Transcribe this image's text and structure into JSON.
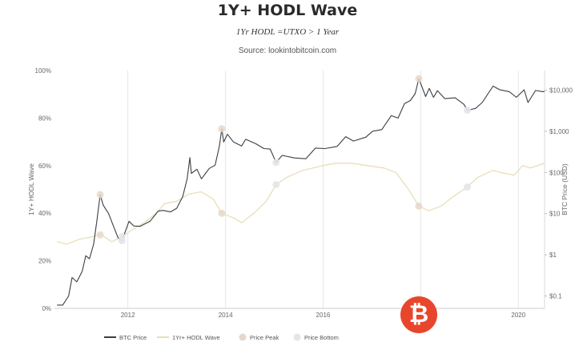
{
  "page": {
    "title": "1Y+ HODL Wave",
    "subtitle": "1Yr HODL =UTXO > 1 Year",
    "source": "Source: lookintobitcoin.com"
  },
  "colors": {
    "price_line": "#3a3f44",
    "hodl_line": "#e8dfb8",
    "peak_marker": "#e7d7c9",
    "bottom_marker": "#e3e6ea",
    "grid": "#e6e6e6",
    "watermark": "#e8462c"
  },
  "icons": {
    "watermark": "bitcoin-logo-icon"
  },
  "chart_data": {
    "type": "line",
    "title": "1Y+ HODL Wave",
    "xlabel": "",
    "ylabel_left": "1Y+ HODL Wave",
    "ylabel_right": "BTC Price (USD)",
    "x_type": "date",
    "xlim": [
      "2010-07-01",
      "2020-07-15"
    ],
    "x_ticks": [
      {
        "date": "2012-01-01",
        "label": "2012"
      },
      {
        "date": "2014-01-01",
        "label": "2014"
      },
      {
        "date": "2016-01-01",
        "label": "2016"
      },
      {
        "date": "2020-01-01",
        "label": "2020"
      }
    ],
    "x_gridlines": [
      "2012-01-01",
      "2014-01-01",
      "2016-01-01",
      "2018-01-01",
      "2020-01-01"
    ],
    "y_left": {
      "min": 0,
      "max": 100,
      "ticks": [
        0,
        20,
        40,
        60,
        80,
        100
      ],
      "tick_labels": [
        "0%",
        "20%",
        "40%",
        "60%",
        "80%",
        "100%"
      ]
    },
    "y_right": {
      "scale": "log",
      "min": 0.05,
      "max": 30000,
      "ticks": [
        0.1,
        1,
        10,
        100,
        1000,
        10000
      ],
      "tick_labels": [
        "$0.1",
        "$1",
        "$10",
        "$100",
        "$1,000",
        "$10,000"
      ]
    },
    "grid": "vertical",
    "legend_position": "bottom",
    "legend": [
      "BTC Price",
      "1Yr+ HODL Wave",
      "Price Peak",
      "Price Bottom"
    ],
    "series": [
      {
        "name": "BTC Price",
        "axis": "right",
        "points": [
          [
            "2010-07-20",
            0.06
          ],
          [
            "2010-09-01",
            0.06
          ],
          [
            "2010-10-15",
            0.1
          ],
          [
            "2010-11-10",
            0.28
          ],
          [
            "2010-12-15",
            0.22
          ],
          [
            "2011-01-25",
            0.4
          ],
          [
            "2011-02-20",
            0.95
          ],
          [
            "2011-03-20",
            0.8
          ],
          [
            "2011-04-20",
            1.8
          ],
          [
            "2011-05-15",
            7.0
          ],
          [
            "2011-06-08",
            29.0
          ],
          [
            "2011-07-01",
            16.0
          ],
          [
            "2011-08-10",
            10.0
          ],
          [
            "2011-09-15",
            5.0
          ],
          [
            "2011-10-20",
            2.6
          ],
          [
            "2011-11-18",
            2.2
          ],
          [
            "2012-01-10",
            6.5
          ],
          [
            "2012-02-15",
            5.0
          ],
          [
            "2012-04-01",
            4.9
          ],
          [
            "2012-06-15",
            6.5
          ],
          [
            "2012-08-15",
            11.5
          ],
          [
            "2012-09-20",
            12.0
          ],
          [
            "2012-11-15",
            11.0
          ],
          [
            "2013-01-01",
            13.5
          ],
          [
            "2013-02-15",
            26.0
          ],
          [
            "2013-03-20",
            70.0
          ],
          [
            "2013-04-09",
            230.0
          ],
          [
            "2013-04-20",
            95.0
          ],
          [
            "2013-06-01",
            120.0
          ],
          [
            "2013-07-05",
            70.0
          ],
          [
            "2013-09-01",
            125.0
          ],
          [
            "2013-10-15",
            150.0
          ],
          [
            "2013-11-15",
            420.0
          ],
          [
            "2013-12-04",
            1150.0
          ],
          [
            "2013-12-18",
            550.0
          ],
          [
            "2014-01-15",
            850.0
          ],
          [
            "2014-03-01",
            550.0
          ],
          [
            "2014-05-01",
            440.0
          ],
          [
            "2014-06-01",
            640.0
          ],
          [
            "2014-08-15",
            500.0
          ],
          [
            "2014-10-15",
            380.0
          ],
          [
            "2014-12-01",
            370.0
          ],
          [
            "2015-01-14",
            175.0
          ],
          [
            "2015-03-01",
            260.0
          ],
          [
            "2015-06-01",
            225.0
          ],
          [
            "2015-08-25",
            215.0
          ],
          [
            "2015-11-05",
            390.0
          ],
          [
            "2016-01-15",
            380.0
          ],
          [
            "2016-04-15",
            430.0
          ],
          [
            "2016-06-18",
            740.0
          ],
          [
            "2016-08-15",
            580.0
          ],
          [
            "2016-11-15",
            720.0
          ],
          [
            "2017-01-05",
            1000.0
          ],
          [
            "2017-03-15",
            1100.0
          ],
          [
            "2017-05-25",
            2400.0
          ],
          [
            "2017-07-15",
            2100.0
          ],
          [
            "2017-09-01",
            4700.0
          ],
          [
            "2017-10-15",
            5600.0
          ],
          [
            "2017-11-20",
            8200.0
          ],
          [
            "2017-12-17",
            19000.0
          ],
          [
            "2018-02-06",
            7000.0
          ],
          [
            "2018-03-05",
            11000.0
          ],
          [
            "2018-04-06",
            6700.0
          ],
          [
            "2018-05-05",
            9700.0
          ],
          [
            "2018-06-30",
            6200.0
          ],
          [
            "2018-09-15",
            6500.0
          ],
          [
            "2018-11-20",
            4500.0
          ],
          [
            "2018-12-15",
            3250.0
          ],
          [
            "2019-02-15",
            3600.0
          ],
          [
            "2019-04-05",
            5000.0
          ],
          [
            "2019-06-26",
            12500.0
          ],
          [
            "2019-08-15",
            10200.0
          ],
          [
            "2019-10-25",
            9200.0
          ],
          [
            "2019-12-17",
            6700.0
          ],
          [
            "2020-02-13",
            10200.0
          ],
          [
            "2020-03-13",
            5000.0
          ],
          [
            "2020-05-08",
            9800.0
          ],
          [
            "2020-07-01",
            9200.0
          ],
          [
            "2020-07-15",
            9300.0
          ]
        ]
      },
      {
        "name": "1Yr+ HODL Wave",
        "axis": "left",
        "points": [
          [
            "2010-07-20",
            28
          ],
          [
            "2010-10-01",
            27
          ],
          [
            "2011-01-01",
            29
          ],
          [
            "2011-04-01",
            30
          ],
          [
            "2011-06-15",
            31
          ],
          [
            "2011-09-01",
            28
          ],
          [
            "2011-11-15",
            30
          ],
          [
            "2012-02-01",
            33
          ],
          [
            "2012-05-01",
            36
          ],
          [
            "2012-08-01",
            40
          ],
          [
            "2012-10-01",
            44
          ],
          [
            "2013-01-01",
            45
          ],
          [
            "2013-04-01",
            48
          ],
          [
            "2013-07-01",
            49
          ],
          [
            "2013-10-01",
            46
          ],
          [
            "2013-12-04",
            40
          ],
          [
            "2014-03-01",
            38
          ],
          [
            "2014-05-01",
            36
          ],
          [
            "2014-08-01",
            40
          ],
          [
            "2014-11-01",
            45
          ],
          [
            "2015-01-14",
            52
          ],
          [
            "2015-04-01",
            55
          ],
          [
            "2015-08-01",
            58
          ],
          [
            "2016-01-01",
            60
          ],
          [
            "2016-04-01",
            61
          ],
          [
            "2016-08-01",
            61
          ],
          [
            "2016-12-01",
            60
          ],
          [
            "2017-04-01",
            59
          ],
          [
            "2017-07-01",
            57
          ],
          [
            "2017-10-01",
            50
          ],
          [
            "2017-12-17",
            43
          ],
          [
            "2018-03-01",
            41
          ],
          [
            "2018-06-01",
            43
          ],
          [
            "2018-09-01",
            47
          ],
          [
            "2018-12-15",
            51
          ],
          [
            "2019-03-01",
            55
          ],
          [
            "2019-06-26",
            58
          ],
          [
            "2019-09-01",
            57
          ],
          [
            "2019-12-01",
            56
          ],
          [
            "2020-02-01",
            60
          ],
          [
            "2020-04-01",
            59
          ],
          [
            "2020-07-15",
            61
          ]
        ]
      }
    ],
    "price_peaks": [
      "2011-06-08",
      "2013-12-04",
      "2017-12-17"
    ],
    "price_bottoms": [
      "2011-11-18",
      "2015-01-14",
      "2018-12-15"
    ]
  }
}
